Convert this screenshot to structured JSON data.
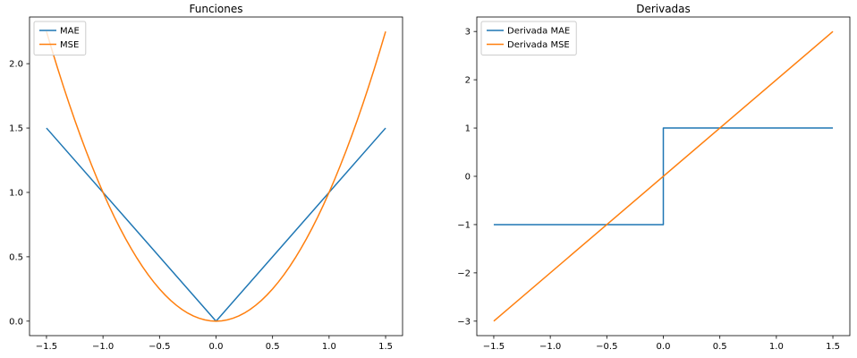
{
  "figure": {
    "background": "#ffffff"
  },
  "colors": {
    "blue": "#1f77b4",
    "orange": "#ff7f0e",
    "axis": "#000000",
    "text": "#000000",
    "legend_border": "#cccccc",
    "legend_fill": "#ffffff"
  },
  "chart_data": [
    {
      "type": "line",
      "title": "Funciones",
      "xlabel": "",
      "ylabel": "",
      "grid": false,
      "xlim": [
        -1.65,
        1.65
      ],
      "ylim": [
        -0.1125,
        2.3625
      ],
      "legend": {
        "position": "upper left",
        "entries": [
          "MAE",
          "MSE"
        ]
      },
      "xticks": {
        "values": [
          -1.5,
          -1.0,
          -0.5,
          0.0,
          0.5,
          1.0,
          1.5
        ],
        "labels": [
          "−1.5",
          "−1.0",
          "−0.5",
          "0.0",
          "0.5",
          "1.0",
          "1.5"
        ]
      },
      "yticks": {
        "values": [
          0.0,
          0.5,
          1.0,
          1.5,
          2.0
        ],
        "labels": [
          "0.0",
          "0.5",
          "1.0",
          "1.5",
          "2.0"
        ]
      },
      "series": [
        {
          "name": "MAE",
          "color_key": "blue",
          "x": [
            -1.5,
            0.0,
            1.5
          ],
          "y": [
            1.5,
            0.0,
            1.5
          ]
        },
        {
          "name": "MSE",
          "color_key": "orange",
          "x": [
            -1.5,
            -1.45,
            -1.4,
            -1.35,
            -1.3,
            -1.25,
            -1.2,
            -1.15,
            -1.1,
            -1.05,
            -1.0,
            -0.95,
            -0.9,
            -0.85,
            -0.8,
            -0.75,
            -0.7,
            -0.65,
            -0.6,
            -0.55,
            -0.5,
            -0.45,
            -0.4,
            -0.35,
            -0.3,
            -0.25,
            -0.2,
            -0.15,
            -0.1,
            -0.05,
            0.0,
            0.05,
            0.1,
            0.15,
            0.2,
            0.25,
            0.3,
            0.35,
            0.4,
            0.45,
            0.5,
            0.55,
            0.6,
            0.65,
            0.7,
            0.75,
            0.8,
            0.85,
            0.9,
            0.95,
            1.0,
            1.05,
            1.1,
            1.15,
            1.2,
            1.25,
            1.3,
            1.35,
            1.4,
            1.45,
            1.5
          ],
          "y": [
            2.25,
            2.1025,
            1.96,
            1.8225,
            1.69,
            1.5625,
            1.44,
            1.3225,
            1.21,
            1.1025,
            1.0,
            0.9025,
            0.81,
            0.7225,
            0.64,
            0.5625,
            0.49,
            0.4225,
            0.36,
            0.3025,
            0.25,
            0.2025,
            0.16,
            0.1225,
            0.09,
            0.0625,
            0.04,
            0.0225,
            0.01,
            0.0025,
            0.0,
            0.0025,
            0.01,
            0.0225,
            0.04,
            0.0625,
            0.09,
            0.1225,
            0.16,
            0.2025,
            0.25,
            0.3025,
            0.36,
            0.4225,
            0.49,
            0.5625,
            0.64,
            0.7225,
            0.81,
            0.9025,
            1.0,
            1.1025,
            1.21,
            1.3225,
            1.44,
            1.5625,
            1.69,
            1.8225,
            1.96,
            2.1025,
            2.25
          ]
        }
      ]
    },
    {
      "type": "line",
      "title": "Derivadas",
      "xlabel": "",
      "ylabel": "",
      "grid": false,
      "xlim": [
        -1.65,
        1.65
      ],
      "ylim": [
        -3.3,
        3.3
      ],
      "legend": {
        "position": "upper left",
        "entries": [
          "Derivada MAE",
          "Derivada MSE"
        ]
      },
      "xticks": {
        "values": [
          -1.5,
          -1.0,
          -0.5,
          0.0,
          0.5,
          1.0,
          1.5
        ],
        "labels": [
          "−1.5",
          "−1.0",
          "−0.5",
          "0.0",
          "0.5",
          "1.0",
          "1.5"
        ]
      },
      "yticks": {
        "values": [
          -3,
          -2,
          -1,
          0,
          1,
          2,
          3
        ],
        "labels": [
          "−3",
          "−2",
          "−1",
          "0",
          "1",
          "2",
          "3"
        ]
      },
      "series": [
        {
          "name": "Derivada MAE",
          "color_key": "blue",
          "x": [
            -1.5,
            0.0,
            0.0,
            1.5
          ],
          "y": [
            -1.0,
            -1.0,
            1.0,
            1.0
          ]
        },
        {
          "name": "Derivada MSE",
          "color_key": "orange",
          "x": [
            -1.5,
            1.5
          ],
          "y": [
            -3.0,
            3.0
          ]
        }
      ]
    }
  ]
}
